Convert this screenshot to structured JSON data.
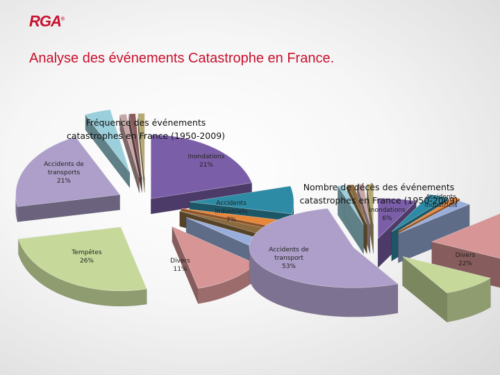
{
  "header": {
    "logo_text": "RGA",
    "logo_mark": "®",
    "title": "Analyse des événements Catastrophe en France."
  },
  "colors": {
    "brand_red": "#c8102e"
  },
  "chart_data": [
    {
      "type": "pie",
      "title": "Fréquence des événements catastrophes en France (1950-2009)",
      "slices": [
        {
          "label": "Inondations",
          "value": 21,
          "color": "#7b5ea8"
        },
        {
          "label": "Accidents Industriels",
          "value": 7,
          "color": "#2e8ba5"
        },
        {
          "label": "",
          "value": 2,
          "color": "#e8863a"
        },
        {
          "label": "",
          "value": 2,
          "color": "#8a6a3e"
        },
        {
          "label": "",
          "value": 3,
          "color": "#9aaedb"
        },
        {
          "label": "Divers",
          "value": 11,
          "color": "#d89595"
        },
        {
          "label": "Tempêtes",
          "value": 26,
          "color": "#c6d99a"
        },
        {
          "label": "Accidents de transports",
          "value": 21,
          "color": "#ad9fc9"
        },
        {
          "label": "",
          "value": 4,
          "color": "#9bcfdc"
        },
        {
          "label": "",
          "value": 1,
          "color": "#c7a6a6"
        },
        {
          "label": "",
          "value": 1,
          "color": "#8a5c5c"
        },
        {
          "label": "",
          "value": 1,
          "color": "#b5a870"
        }
      ],
      "labels": [
        {
          "text": "Inondations\n21%"
        },
        {
          "text": "Accidents\nIndustriels\n7%"
        },
        {
          "text": "Divers\n11%"
        },
        {
          "text": "Tempêtes\n26%"
        },
        {
          "text": "Accidents de\ntransports\n21%"
        }
      ]
    },
    {
      "type": "pie",
      "title": "Nombre de décès des événements catastrophes en France (1950-2009)",
      "slices": [
        {
          "label": "Inondations",
          "value": 6,
          "color": "#7b5ea8"
        },
        {
          "label": "Accidents Industriels",
          "value": 3,
          "color": "#2e8ba5"
        },
        {
          "label": "",
          "value": 1,
          "color": "#e8863a"
        },
        {
          "label": "",
          "value": 2,
          "color": "#9aaedb"
        },
        {
          "label": "Divers",
          "value": 22,
          "color": "#d89595"
        },
        {
          "label": "",
          "value": 9,
          "color": "#c6d99a"
        },
        {
          "label": "Accidents de transport",
          "value": 53,
          "color": "#ad9fc9"
        },
        {
          "label": "",
          "value": 1,
          "color": "#9bcfdc"
        },
        {
          "label": "",
          "value": 1,
          "color": "#8a6a3e"
        },
        {
          "label": "",
          "value": 1,
          "color": "#c7a6a6"
        },
        {
          "label": "",
          "value": 1,
          "color": "#b5a870"
        }
      ],
      "labels": [
        {
          "text": "Inondations\n6%"
        },
        {
          "text": "Accidents\nIndustriels"
        },
        {
          "text": "Divers\n22%"
        },
        {
          "text": "Accidents de\ntransport\n53%"
        }
      ]
    }
  ]
}
